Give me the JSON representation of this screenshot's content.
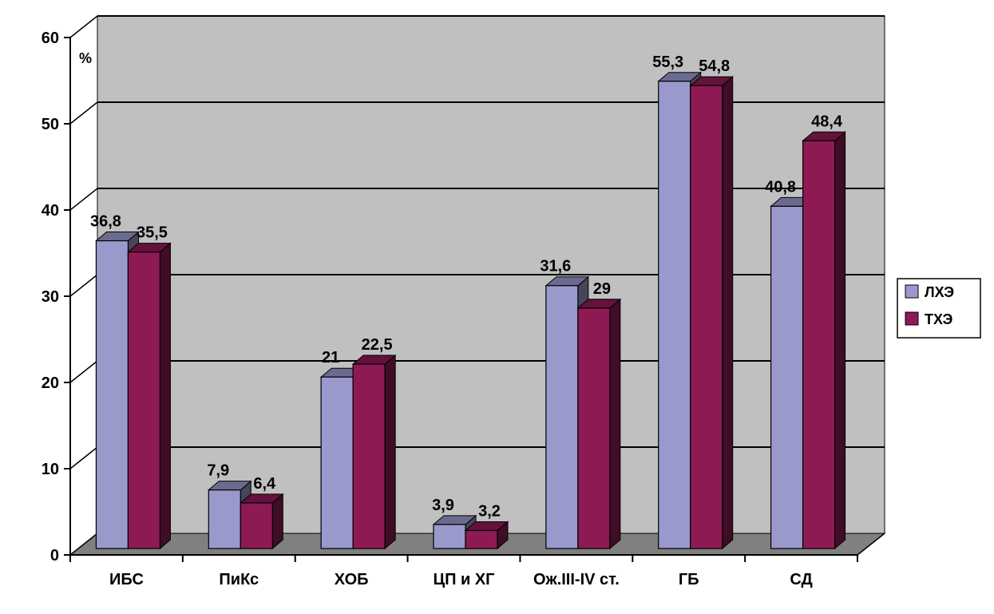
{
  "chart_data": {
    "type": "bar",
    "unit_label": "%",
    "categories": [
      "ИБС",
      "ПиКс",
      "ХОБ",
      "ЦП и ХГ",
      "Ож.III-IV ст.",
      "ГБ",
      "СД"
    ],
    "series": [
      {
        "name": "ЛХЭ",
        "color": "#9999cc",
        "values": [
          36.8,
          7.9,
          21,
          3.9,
          31.6,
          55.3,
          40.8
        ],
        "labels": [
          "36,8",
          "7,9",
          "21",
          "3,9",
          "31,6",
          "55,3",
          "40,8"
        ]
      },
      {
        "name": "ТХЭ",
        "color": "#8e1a54",
        "values": [
          35.5,
          6.4,
          22.5,
          3.2,
          29,
          54.8,
          48.4
        ],
        "labels": [
          "35,5",
          "6,4",
          "22,5",
          "3,2",
          "29",
          "54,8",
          "48,4"
        ]
      }
    ],
    "ylim": [
      0,
      60
    ],
    "yticks": [
      0,
      10,
      20,
      30,
      40,
      50,
      60
    ],
    "grid": true,
    "legend_position": "right",
    "plot_background": "#c0c0c0",
    "floor_color": "#808080"
  }
}
